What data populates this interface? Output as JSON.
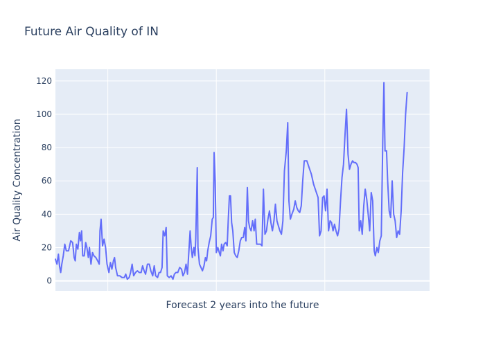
{
  "chart_data": {
    "type": "line",
    "title": "Future Air Quality of IN",
    "xlabel": "Forecast 2 years into the future",
    "ylabel": "Air Quality Concentration",
    "ylim": [
      -6,
      127
    ],
    "xlim": [
      0,
      1
    ],
    "y_ticks": [
      0,
      20,
      40,
      60,
      80,
      100,
      120
    ],
    "x_gridlines": [
      0.14,
      0.43,
      0.72
    ],
    "grid": true,
    "legend": "none",
    "colors": {
      "plot_background": "#e5ecf6",
      "line": "#636efa",
      "grid": "#ffffff",
      "text": "#2a3f5f"
    },
    "series": [
      {
        "values": [
          [
            0.0,
            13
          ],
          [
            0.004,
            10
          ],
          [
            0.008,
            16
          ],
          [
            0.011,
            9
          ],
          [
            0.014,
            5
          ],
          [
            0.017,
            10
          ],
          [
            0.021,
            15
          ],
          [
            0.025,
            22
          ],
          [
            0.029,
            18
          ],
          [
            0.035,
            18
          ],
          [
            0.041,
            24
          ],
          [
            0.046,
            23
          ],
          [
            0.05,
            14
          ],
          [
            0.053,
            12
          ],
          [
            0.056,
            22
          ],
          [
            0.06,
            19
          ],
          [
            0.064,
            29
          ],
          [
            0.067,
            24
          ],
          [
            0.07,
            30
          ],
          [
            0.073,
            15
          ],
          [
            0.077,
            15
          ],
          [
            0.081,
            23
          ],
          [
            0.084,
            20
          ],
          [
            0.088,
            14
          ],
          [
            0.091,
            20
          ],
          [
            0.095,
            10
          ],
          [
            0.099,
            17
          ],
          [
            0.103,
            15
          ],
          [
            0.108,
            14
          ],
          [
            0.113,
            12
          ],
          [
            0.117,
            10
          ],
          [
            0.119,
            30
          ],
          [
            0.122,
            37
          ],
          [
            0.126,
            21
          ],
          [
            0.13,
            25
          ],
          [
            0.134,
            20
          ],
          [
            0.138,
            10
          ],
          [
            0.143,
            5
          ],
          [
            0.147,
            11
          ],
          [
            0.151,
            7
          ],
          [
            0.155,
            12
          ],
          [
            0.158,
            14
          ],
          [
            0.161,
            8
          ],
          [
            0.166,
            3
          ],
          [
            0.172,
            3
          ],
          [
            0.178,
            2
          ],
          [
            0.184,
            2
          ],
          [
            0.188,
            4
          ],
          [
            0.192,
            1
          ],
          [
            0.197,
            2
          ],
          [
            0.201,
            5
          ],
          [
            0.205,
            10
          ],
          [
            0.209,
            3
          ],
          [
            0.214,
            5
          ],
          [
            0.219,
            6
          ],
          [
            0.224,
            5
          ],
          [
            0.229,
            5
          ],
          [
            0.233,
            9
          ],
          [
            0.237,
            6
          ],
          [
            0.241,
            4
          ],
          [
            0.246,
            10
          ],
          [
            0.251,
            10
          ],
          [
            0.255,
            6
          ],
          [
            0.26,
            3
          ],
          [
            0.264,
            9
          ],
          [
            0.268,
            3
          ],
          [
            0.273,
            2
          ],
          [
            0.277,
            5
          ],
          [
            0.281,
            5
          ],
          [
            0.285,
            8
          ],
          [
            0.288,
            30
          ],
          [
            0.292,
            27
          ],
          [
            0.296,
            32
          ],
          [
            0.299,
            3
          ],
          [
            0.304,
            2
          ],
          [
            0.309,
            3
          ],
          [
            0.314,
            1
          ],
          [
            0.318,
            4
          ],
          [
            0.322,
            5
          ],
          [
            0.327,
            5
          ],
          [
            0.332,
            8
          ],
          [
            0.337,
            7
          ],
          [
            0.341,
            3
          ],
          [
            0.345,
            5
          ],
          [
            0.349,
            10
          ],
          [
            0.353,
            4
          ],
          [
            0.357,
            19
          ],
          [
            0.36,
            30
          ],
          [
            0.363,
            20
          ],
          [
            0.366,
            14
          ],
          [
            0.37,
            20
          ],
          [
            0.373,
            15
          ],
          [
            0.375,
            25
          ],
          [
            0.377,
            45
          ],
          [
            0.379,
            68
          ],
          [
            0.381,
            20
          ],
          [
            0.385,
            10
          ],
          [
            0.389,
            8
          ],
          [
            0.393,
            6
          ],
          [
            0.397,
            9
          ],
          [
            0.401,
            14
          ],
          [
            0.404,
            12
          ],
          [
            0.407,
            18
          ],
          [
            0.411,
            23
          ],
          [
            0.415,
            27
          ],
          [
            0.419,
            37
          ],
          [
            0.422,
            38
          ],
          [
            0.424,
            77
          ],
          [
            0.427,
            60
          ],
          [
            0.43,
            17
          ],
          [
            0.434,
            20
          ],
          [
            0.438,
            17
          ],
          [
            0.441,
            15
          ],
          [
            0.444,
            22
          ],
          [
            0.448,
            18
          ],
          [
            0.451,
            22
          ],
          [
            0.455,
            23
          ],
          [
            0.459,
            21
          ],
          [
            0.462,
            37
          ],
          [
            0.465,
            51
          ],
          [
            0.468,
            51
          ],
          [
            0.471,
            35
          ],
          [
            0.474,
            30
          ],
          [
            0.478,
            17
          ],
          [
            0.482,
            15
          ],
          [
            0.486,
            14
          ],
          [
            0.49,
            18
          ],
          [
            0.494,
            24
          ],
          [
            0.498,
            26
          ],
          [
            0.502,
            26
          ],
          [
            0.506,
            32
          ],
          [
            0.509,
            24
          ],
          [
            0.513,
            56
          ],
          [
            0.516,
            36
          ],
          [
            0.519,
            32
          ],
          [
            0.523,
            30
          ],
          [
            0.527,
            36
          ],
          [
            0.531,
            30
          ],
          [
            0.534,
            37
          ],
          [
            0.538,
            22
          ],
          [
            0.542,
            22
          ],
          [
            0.548,
            22
          ],
          [
            0.552,
            21
          ],
          [
            0.556,
            55
          ],
          [
            0.56,
            28
          ],
          [
            0.564,
            30
          ],
          [
            0.568,
            37
          ],
          [
            0.572,
            42
          ],
          [
            0.576,
            35
          ],
          [
            0.58,
            30
          ],
          [
            0.584,
            36
          ],
          [
            0.588,
            46
          ],
          [
            0.592,
            36
          ],
          [
            0.596,
            33
          ],
          [
            0.6,
            30
          ],
          [
            0.604,
            28
          ],
          [
            0.608,
            36
          ],
          [
            0.612,
            66
          ],
          [
            0.617,
            78
          ],
          [
            0.621,
            95
          ],
          [
            0.624,
            48
          ],
          [
            0.628,
            37
          ],
          [
            0.632,
            40
          ],
          [
            0.637,
            43
          ],
          [
            0.641,
            48
          ],
          [
            0.645,
            44
          ],
          [
            0.649,
            42
          ],
          [
            0.653,
            41
          ],
          [
            0.657,
            45
          ],
          [
            0.661,
            60
          ],
          [
            0.665,
            72
          ],
          [
            0.672,
            72
          ],
          [
            0.678,
            68
          ],
          [
            0.684,
            64
          ],
          [
            0.69,
            58
          ],
          [
            0.696,
            54
          ],
          [
            0.702,
            50
          ],
          [
            0.706,
            27
          ],
          [
            0.71,
            30
          ],
          [
            0.714,
            50
          ],
          [
            0.718,
            51
          ],
          [
            0.722,
            42
          ],
          [
            0.726,
            55
          ],
          [
            0.73,
            30
          ],
          [
            0.734,
            36
          ],
          [
            0.738,
            35
          ],
          [
            0.742,
            30
          ],
          [
            0.746,
            34
          ],
          [
            0.75,
            30
          ],
          [
            0.754,
            27
          ],
          [
            0.758,
            31
          ],
          [
            0.762,
            48
          ],
          [
            0.766,
            62
          ],
          [
            0.77,
            70
          ],
          [
            0.774,
            88
          ],
          [
            0.778,
            103
          ],
          [
            0.782,
            76
          ],
          [
            0.786,
            67
          ],
          [
            0.79,
            70
          ],
          [
            0.794,
            72
          ],
          [
            0.798,
            71
          ],
          [
            0.802,
            71
          ],
          [
            0.806,
            70
          ],
          [
            0.809,
            68
          ],
          [
            0.812,
            30
          ],
          [
            0.816,
            36
          ],
          [
            0.82,
            28
          ],
          [
            0.824,
            45
          ],
          [
            0.828,
            55
          ],
          [
            0.832,
            49
          ],
          [
            0.836,
            40
          ],
          [
            0.84,
            30
          ],
          [
            0.844,
            53
          ],
          [
            0.848,
            48
          ],
          [
            0.852,
            18
          ],
          [
            0.855,
            15
          ],
          [
            0.859,
            20
          ],
          [
            0.863,
            17
          ],
          [
            0.867,
            24
          ],
          [
            0.871,
            27
          ],
          [
            0.875,
            85
          ],
          [
            0.878,
            119
          ],
          [
            0.881,
            78
          ],
          [
            0.885,
            78
          ],
          [
            0.888,
            60
          ],
          [
            0.892,
            42
          ],
          [
            0.896,
            38
          ],
          [
            0.9,
            60
          ],
          [
            0.904,
            40
          ],
          [
            0.908,
            36
          ],
          [
            0.912,
            26
          ],
          [
            0.916,
            30
          ],
          [
            0.92,
            28
          ],
          [
            0.924,
            42
          ],
          [
            0.928,
            65
          ],
          [
            0.932,
            80
          ],
          [
            0.936,
            100
          ],
          [
            0.94,
            113
          ]
        ]
      }
    ]
  }
}
